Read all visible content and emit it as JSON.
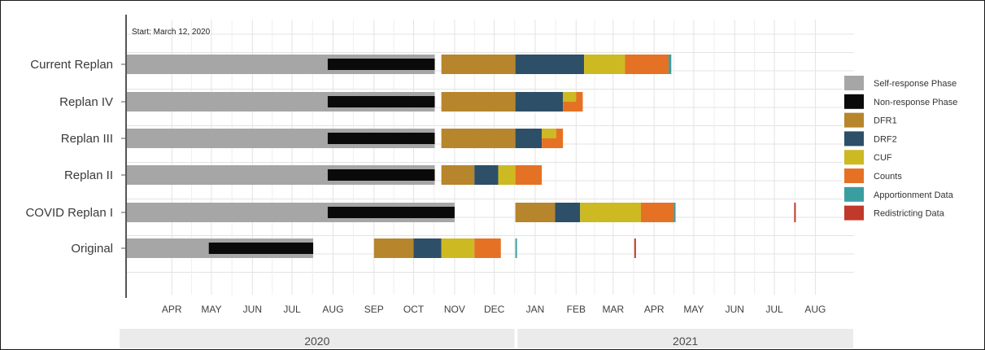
{
  "chart_data": {
    "type": "gantt",
    "annotation": "Start: March 12, 2020",
    "x_axis": {
      "range": [
        "2020-03-12",
        "2021-09-01"
      ],
      "month_ticks": [
        {
          "label": "APR",
          "date": "2020-04-15"
        },
        {
          "label": "MAY",
          "date": "2020-05-15"
        },
        {
          "label": "JUN",
          "date": "2020-06-15"
        },
        {
          "label": "JUL",
          "date": "2020-07-15"
        },
        {
          "label": "AUG",
          "date": "2020-08-15"
        },
        {
          "label": "SEP",
          "date": "2020-09-15"
        },
        {
          "label": "OCT",
          "date": "2020-10-15"
        },
        {
          "label": "NOV",
          "date": "2020-11-15"
        },
        {
          "label": "DEC",
          "date": "2020-12-15"
        },
        {
          "label": "JAN",
          "date": "2021-01-15"
        },
        {
          "label": "FEB",
          "date": "2021-02-15"
        },
        {
          "label": "MAR",
          "date": "2021-03-15"
        },
        {
          "label": "APR",
          "date": "2021-04-15"
        },
        {
          "label": "MAY",
          "date": "2021-05-15"
        },
        {
          "label": "JUN",
          "date": "2021-06-15"
        },
        {
          "label": "JUL",
          "date": "2021-07-15"
        },
        {
          "label": "AUG",
          "date": "2021-08-15"
        }
      ],
      "year_bands": [
        {
          "label": "2020",
          "start": "2020-03-12",
          "end": "2020-12-31"
        },
        {
          "label": "2021",
          "start": "2021-01-01",
          "end": "2021-09-01"
        }
      ]
    },
    "grid": true,
    "legend_position": "right",
    "phases": [
      {
        "name": "Self-response Phase",
        "color": "#a6a6a6"
      },
      {
        "name": "Non-response Phase",
        "color": "#0a0a0a"
      },
      {
        "name": "DFR1",
        "color": "#b7852b"
      },
      {
        "name": "DRF2",
        "color": "#2d4f68"
      },
      {
        "name": "CUF",
        "color": "#cdb922"
      },
      {
        "name": "Counts",
        "color": "#e57125"
      },
      {
        "name": "Apportionment Data",
        "color": "#3a9ea1"
      },
      {
        "name": "Redistricting Data",
        "color": "#c0392b"
      }
    ],
    "categories": [
      "Current Replan",
      "Replan IV",
      "Replan III",
      "Replan II",
      "COVID Replan I",
      "Original"
    ],
    "schedules": [
      {
        "category": "Current Replan",
        "segments": [
          {
            "phase": "Self-response Phase",
            "start": "2020-03-12",
            "end": "2020-10-31",
            "thickness": "full"
          },
          {
            "phase": "Non-response Phase",
            "start": "2020-08-11",
            "end": "2020-10-31",
            "thickness": "thin"
          },
          {
            "phase": "DFR1",
            "start": "2020-11-05",
            "end": "2020-12-31"
          },
          {
            "phase": "DRF2",
            "start": "2020-12-31",
            "end": "2021-02-21"
          },
          {
            "phase": "CUF",
            "start": "2021-02-21",
            "end": "2021-03-24"
          },
          {
            "phase": "Counts",
            "start": "2021-03-24",
            "end": "2021-04-26"
          },
          {
            "phase": "Apportionment Data",
            "start": "2021-04-26",
            "end": "2021-04-28"
          }
        ]
      },
      {
        "category": "Replan IV",
        "segments": [
          {
            "phase": "Self-response Phase",
            "start": "2020-03-12",
            "end": "2020-10-31",
            "thickness": "full"
          },
          {
            "phase": "Non-response Phase",
            "start": "2020-08-11",
            "end": "2020-10-31",
            "thickness": "thin"
          },
          {
            "phase": "DFR1",
            "start": "2020-11-05",
            "end": "2020-12-31"
          },
          {
            "phase": "DRF2",
            "start": "2020-12-31",
            "end": "2021-02-05"
          },
          {
            "phase": "Counts",
            "start": "2021-02-05",
            "end": "2021-02-20"
          },
          {
            "phase": "CUF",
            "start": "2021-02-05",
            "end": "2021-02-15",
            "thickness": "half",
            "position": "top"
          }
        ]
      },
      {
        "category": "Replan III",
        "segments": [
          {
            "phase": "Self-response Phase",
            "start": "2020-03-12",
            "end": "2020-10-31",
            "thickness": "full"
          },
          {
            "phase": "Non-response Phase",
            "start": "2020-08-11",
            "end": "2020-10-31",
            "thickness": "thin"
          },
          {
            "phase": "DFR1",
            "start": "2020-11-05",
            "end": "2020-12-31"
          },
          {
            "phase": "DRF2",
            "start": "2020-12-31",
            "end": "2021-01-20"
          },
          {
            "phase": "Counts",
            "start": "2021-01-20",
            "end": "2021-02-05"
          },
          {
            "phase": "CUF",
            "start": "2021-01-20",
            "end": "2021-01-31",
            "thickness": "half",
            "position": "top"
          }
        ]
      },
      {
        "category": "Replan II",
        "segments": [
          {
            "phase": "Self-response Phase",
            "start": "2020-03-12",
            "end": "2020-10-31",
            "thickness": "full"
          },
          {
            "phase": "Non-response Phase",
            "start": "2020-08-11",
            "end": "2020-10-31",
            "thickness": "thin"
          },
          {
            "phase": "DFR1",
            "start": "2020-11-05",
            "end": "2020-11-30"
          },
          {
            "phase": "DRF2",
            "start": "2020-11-30",
            "end": "2020-12-18"
          },
          {
            "phase": "CUF",
            "start": "2020-12-18",
            "end": "2020-12-31"
          },
          {
            "phase": "Counts",
            "start": "2020-12-31",
            "end": "2021-01-20"
          }
        ]
      },
      {
        "category": "COVID Replan I",
        "segments": [
          {
            "phase": "Self-response Phase",
            "start": "2020-03-12",
            "end": "2020-11-15",
            "thickness": "full"
          },
          {
            "phase": "Non-response Phase",
            "start": "2020-08-11",
            "end": "2020-11-15",
            "thickness": "thin"
          },
          {
            "phase": "DFR1",
            "start": "2020-12-31",
            "end": "2021-01-30"
          },
          {
            "phase": "DRF2",
            "start": "2021-01-30",
            "end": "2021-02-18"
          },
          {
            "phase": "CUF",
            "start": "2021-02-18",
            "end": "2021-04-05"
          },
          {
            "phase": "Counts",
            "start": "2021-04-05",
            "end": "2021-04-30"
          },
          {
            "phase": "Apportionment Data",
            "start": "2021-04-30",
            "end": "2021-05-01"
          },
          {
            "phase": "Redistricting Data",
            "start": "2021-07-30",
            "end": "2021-07-31"
          }
        ]
      },
      {
        "category": "Original",
        "segments": [
          {
            "phase": "Self-response Phase",
            "start": "2020-03-12",
            "end": "2020-07-31",
            "thickness": "full"
          },
          {
            "phase": "Non-response Phase",
            "start": "2020-05-13",
            "end": "2020-07-31",
            "thickness": "thin"
          },
          {
            "phase": "DFR1",
            "start": "2020-09-15",
            "end": "2020-10-15"
          },
          {
            "phase": "DRF2",
            "start": "2020-10-15",
            "end": "2020-11-05"
          },
          {
            "phase": "CUF",
            "start": "2020-11-05",
            "end": "2020-11-30"
          },
          {
            "phase": "Counts",
            "start": "2020-11-30",
            "end": "2020-12-20"
          },
          {
            "phase": "Apportionment Data",
            "start": "2020-12-31",
            "end": "2021-01-01"
          },
          {
            "phase": "Redistricting Data",
            "start": "2021-03-31",
            "end": "2021-04-01"
          }
        ]
      }
    ]
  }
}
